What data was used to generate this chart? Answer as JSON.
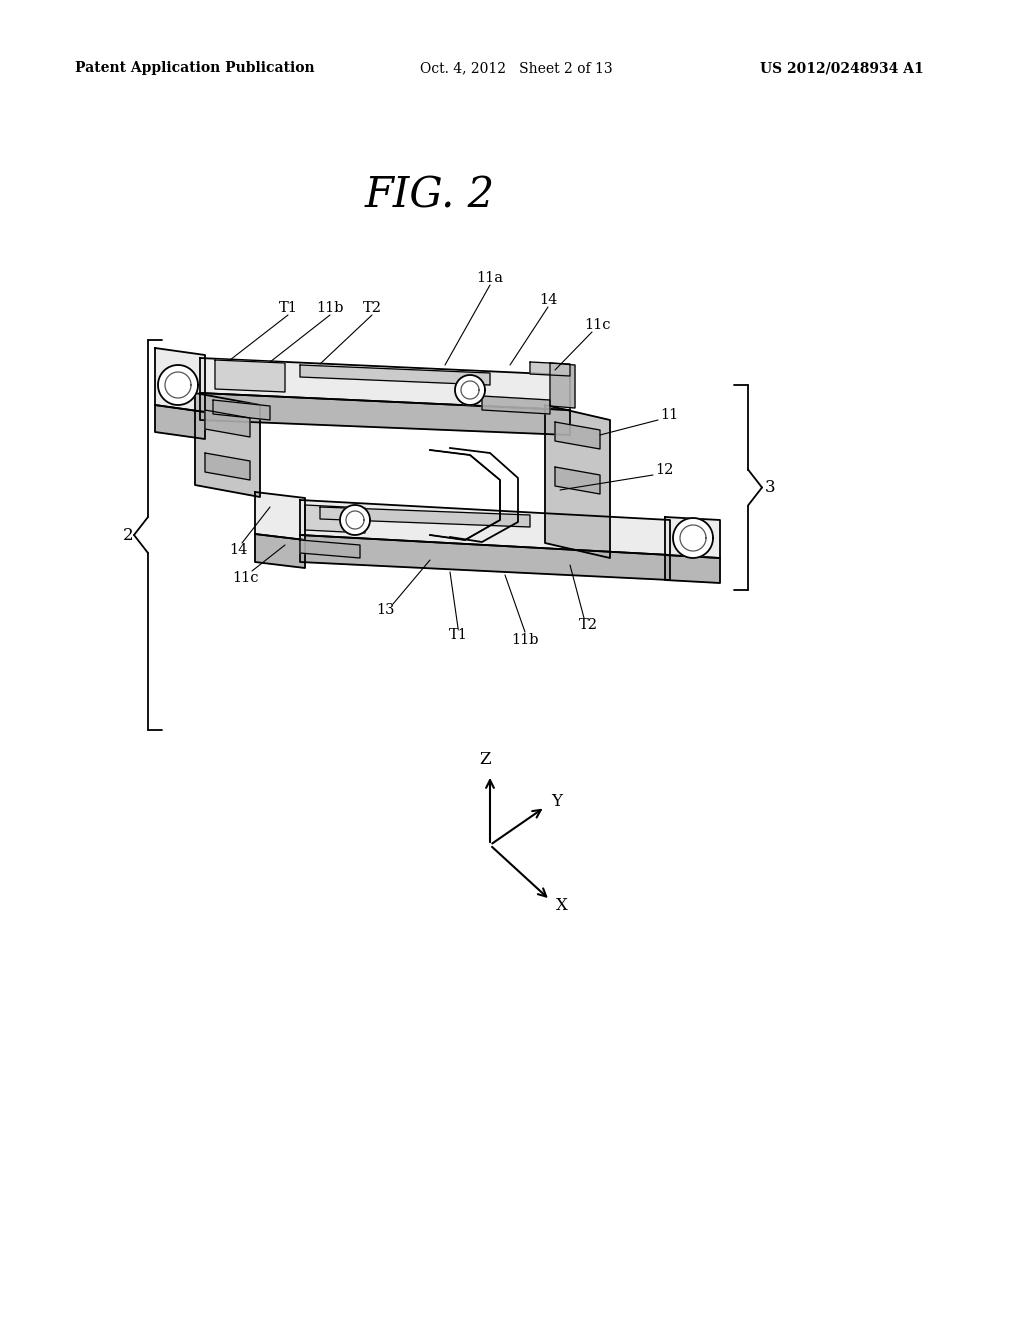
{
  "background_color": "#ffffff",
  "header_left": "Patent Application Publication",
  "header_middle": "Oct. 4, 2012   Sheet 2 of 13",
  "header_right": "US 2012/0248934 A1",
  "fig_title": "FIG. 2",
  "header_fontsize": 10,
  "label_fontsize": 10.5,
  "page_width": 10.24,
  "page_height": 13.2
}
